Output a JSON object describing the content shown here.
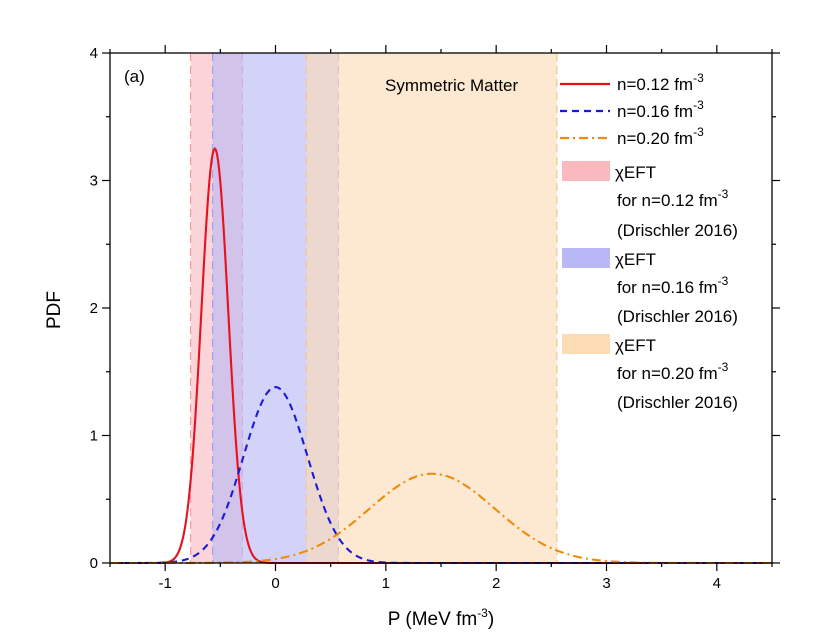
{
  "chart_data": {
    "type": "line",
    "panel_label": "(a)",
    "annotation": "Symmetric Matter",
    "xlabel": "P (MeV fm",
    "xlabel_sup": "-3",
    "xlabel_close": ")",
    "ylabel": "PDF",
    "xlim": [
      -1.5,
      4.5
    ],
    "ylim": [
      0,
      4
    ],
    "xticks": [
      -1,
      0,
      1,
      2,
      3,
      4
    ],
    "yticks": [
      0,
      1,
      2,
      3,
      4
    ],
    "grid": false,
    "legend_position": "top-right",
    "series": [
      {
        "name": "n=0.12 fm",
        "name_sup": "-3",
        "color": "#e8101f",
        "dash": "solid",
        "distribution": {
          "shape": "gaussian",
          "mean": -0.55,
          "sd": 0.122,
          "peak": 3.25
        }
      },
      {
        "name": "n=0.16 fm",
        "name_sup": "-3",
        "color": "#1a1ad6",
        "dash": "dashed",
        "distribution": {
          "shape": "gaussian",
          "mean": 0.0,
          "sd": 0.29,
          "peak": 1.38
        }
      },
      {
        "name": "n=0.20 fm",
        "name_sup": "-3",
        "color": "#f08a0a",
        "dash": "dashdot",
        "distribution": {
          "shape": "gaussian",
          "mean": 1.42,
          "sd": 0.57,
          "peak": 0.7
        }
      }
    ],
    "bands": [
      {
        "label": "χEFT",
        "for_text": "for n=0.12 fm",
        "for_sup": "-3",
        "ref": "(Drischler 2016)",
        "x_range": [
          -0.77,
          -0.3
        ],
        "fill": "#f9b9bf",
        "edge": "#f49aa3"
      },
      {
        "label": "χEFT",
        "for_text": "for n=0.16 fm",
        "for_sup": "-3",
        "ref": "(Drischler 2016)",
        "x_range": [
          -0.57,
          0.57
        ],
        "fill": "#b8b8f7",
        "edge": "#9f9ff0"
      },
      {
        "label": "χEFT",
        "for_text": "for n=0.20 fm",
        "for_sup": "-3",
        "ref": "(Drischler 2016)",
        "x_range": [
          0.28,
          2.55
        ],
        "fill": "#fbdcb4",
        "edge": "#f6c690"
      }
    ]
  }
}
